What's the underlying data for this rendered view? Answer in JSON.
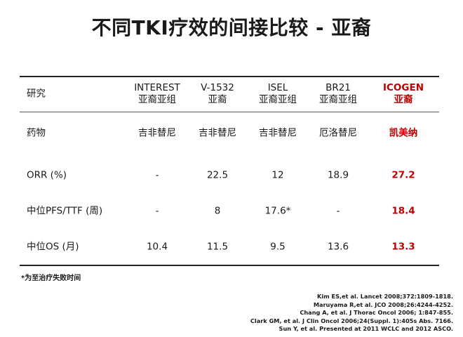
{
  "title": "不同TKI疗效的间接比较 - 亚裔",
  "table": {
    "header_label": "研究",
    "studies": [
      {
        "name": "INTEREST",
        "subgroup": "亚裔亚组"
      },
      {
        "name": "V-1532",
        "subgroup": "亚裔"
      },
      {
        "name": "ISEL",
        "subgroup": "亚裔亚组"
      },
      {
        "name": "BR21",
        "subgroup": "亚裔亚组"
      },
      {
        "name": "ICOGEN",
        "subgroup": "亚裔"
      }
    ],
    "rows": [
      {
        "label": "药物",
        "values": [
          "吉非替尼",
          "吉非替尼",
          "吉非替尼",
          "厄洛替尼",
          "凯美纳"
        ]
      },
      {
        "label": "ORR (%)",
        "values": [
          "-",
          "22.5",
          "12",
          "18.9",
          "27.2"
        ]
      },
      {
        "label": "中位PFS/TTF (周)",
        "values": [
          "-",
          "8",
          "17.6*",
          "-",
          "18.4"
        ]
      },
      {
        "label": "中位OS (月)",
        "values": [
          "10.4",
          "11.5",
          "9.5",
          "13.6",
          "13.3"
        ]
      }
    ]
  },
  "footnote": "*为至治疗失败时间",
  "references": [
    "Kim ES,et al. Lancet 2008;372:1809-1818.",
    "Maruyama R,et al. JCO 2008;26:4244-4252.",
    "Chang A, et al. J Thorac Oncol 2006; 1:847-855.",
    "Clark GM, et al. J Clin Oncol 2006;24(Suppl. 1):405s Abs. 7166.",
    "Sun Y, et al. Presented at 2011 WCLC and 2012 ASCO."
  ],
  "colors": {
    "highlight": "#c00000",
    "rule": "#222222"
  }
}
